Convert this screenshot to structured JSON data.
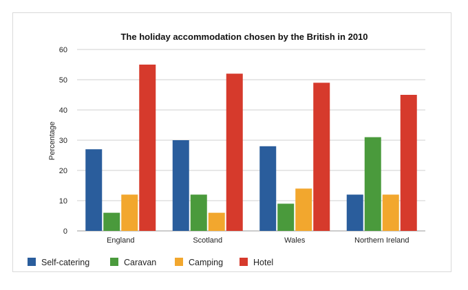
{
  "chart_data": {
    "type": "bar",
    "title": "The holiday accommodation chosen by the British in 2010",
    "xlabel": "",
    "ylabel": "Percentage",
    "categories": [
      "England",
      "Scotland",
      "Wales",
      "Northern Ireland"
    ],
    "ylim": [
      0,
      60
    ],
    "yticks": [
      0,
      10,
      20,
      30,
      40,
      50,
      60
    ],
    "grid": true,
    "legend_position": "bottom",
    "series": [
      {
        "name": "Self-catering",
        "color": "#2a5d9c",
        "values": [
          27,
          30,
          28,
          12
        ]
      },
      {
        "name": "Caravan",
        "color": "#4a9a3c",
        "values": [
          6,
          12,
          9,
          31
        ]
      },
      {
        "name": "Camping",
        "color": "#f2a72e",
        "values": [
          12,
          6,
          14,
          12
        ]
      },
      {
        "name": "Hotel",
        "color": "#d63a2c",
        "values": [
          55,
          52,
          49,
          45
        ]
      }
    ]
  }
}
